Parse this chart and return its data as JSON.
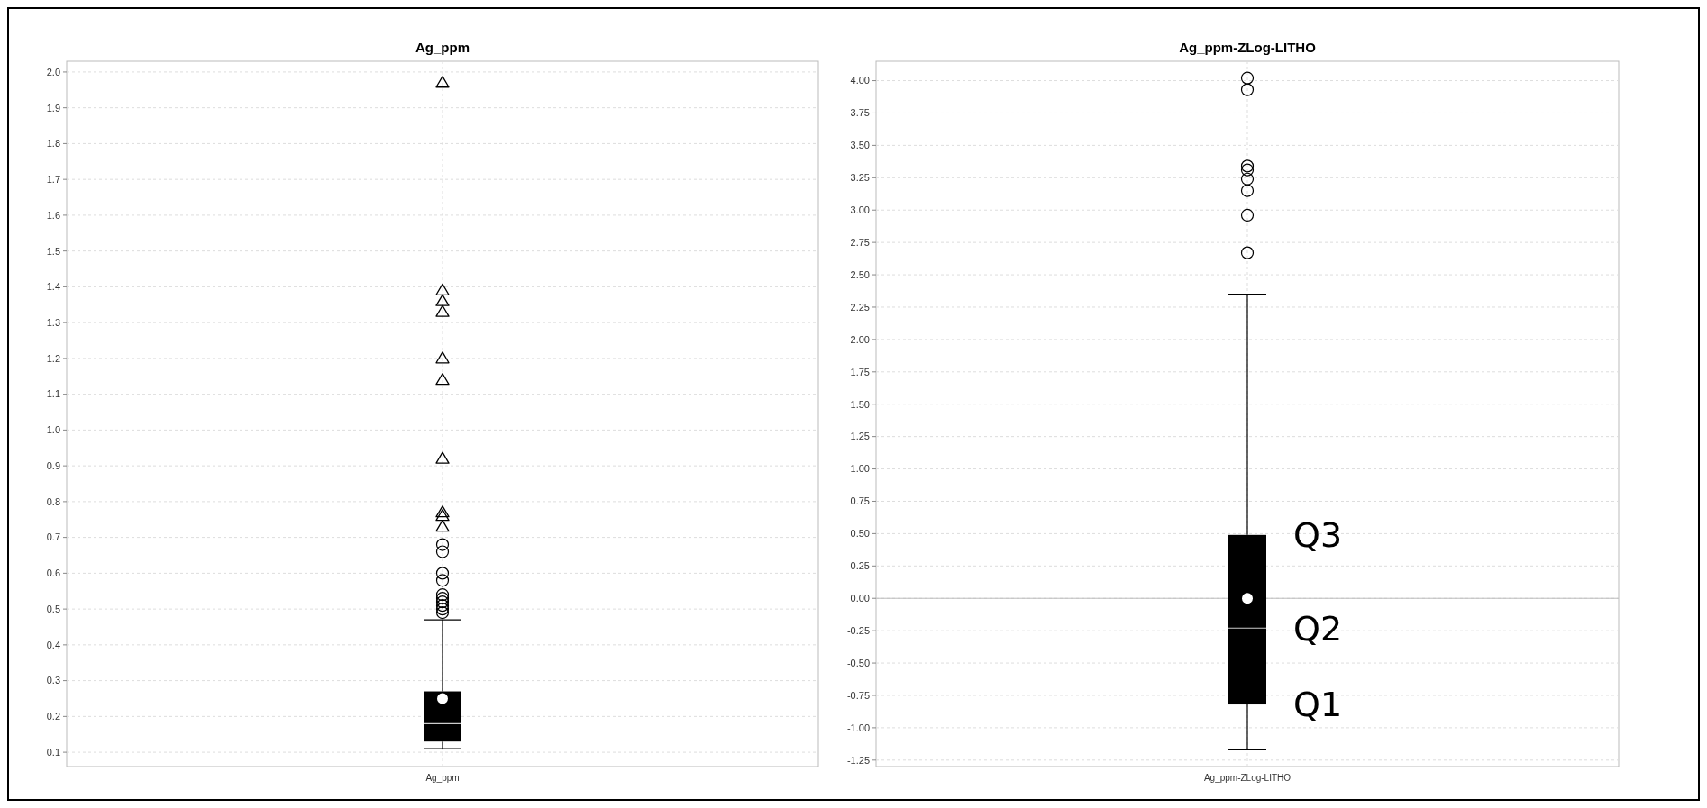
{
  "chart_data": [
    {
      "type": "box",
      "title": "Ag_ppm",
      "categories": [
        "Ag_ppm"
      ],
      "ylim": [
        0.06,
        2.03
      ],
      "yticks": [
        {
          "value": 0.1,
          "label": "0.1"
        },
        {
          "value": 0.2,
          "label": "0.2"
        },
        {
          "value": 0.3,
          "label": "0.3"
        },
        {
          "value": 0.4,
          "label": "0.4"
        },
        {
          "value": 0.5,
          "label": "0.5"
        },
        {
          "value": 0.6,
          "label": "0.6"
        },
        {
          "value": 0.7,
          "label": "0.7"
        },
        {
          "value": 0.8,
          "label": "0.8"
        },
        {
          "value": 0.9,
          "label": "0.9"
        },
        {
          "value": 1.0,
          "label": "1.0"
        },
        {
          "value": 1.1,
          "label": "1.1"
        },
        {
          "value": 1.2,
          "label": "1.2"
        },
        {
          "value": 1.3,
          "label": "1.3"
        },
        {
          "value": 1.4,
          "label": "1.4"
        },
        {
          "value": 1.5,
          "label": "1.5"
        },
        {
          "value": 1.6,
          "label": "1.6"
        },
        {
          "value": 1.7,
          "label": "1.7"
        },
        {
          "value": 1.8,
          "label": "1.8"
        },
        {
          "value": 1.9,
          "label": "1.9"
        },
        {
          "value": 2.0,
          "label": "2.0"
        }
      ],
      "grid": true,
      "series": [
        {
          "color": "#000000",
          "boxes": [
            {
              "low": 0.11,
              "q1": 0.13,
              "median": 0.18,
              "q3": 0.27,
              "high": 0.47,
              "mean": 0.25,
              "outliers": [
                0.49,
                0.5,
                0.51,
                0.52,
                0.53,
                0.54,
                0.58,
                0.6,
                0.66,
                0.68
              ]
            }
          ]
        },
        {
          "type": "scatter",
          "color": "#000000",
          "marker": "triangle",
          "x": [
            "Ag_ppm",
            "Ag_ppm",
            "Ag_ppm",
            "Ag_ppm",
            "Ag_ppm",
            "Ag_ppm",
            "Ag_ppm",
            "Ag_ppm",
            "Ag_ppm",
            "Ag_ppm"
          ],
          "values": [
            0.73,
            0.76,
            0.77,
            0.92,
            1.14,
            1.2,
            1.33,
            1.36,
            1.39,
            1.97
          ]
        }
      ]
    },
    {
      "type": "box",
      "title": "Ag_ppm-ZLog-LITHO",
      "categories": [
        "Ag_ppm-ZLog-LITHO"
      ],
      "ylim": [
        -1.3,
        4.15
      ],
      "yticks": [
        {
          "value": -1.25,
          "label": "-1.25"
        },
        {
          "value": -1.0,
          "label": "-1.00"
        },
        {
          "value": -0.75,
          "label": "-0.75"
        },
        {
          "value": -0.5,
          "label": "-0.50"
        },
        {
          "value": -0.25,
          "label": "-0.25"
        },
        {
          "value": 0,
          "label": "0.00"
        },
        {
          "value": 0.25,
          "label": "0.25"
        },
        {
          "value": 0.5,
          "label": "0.50"
        },
        {
          "value": 0.75,
          "label": "0.75"
        },
        {
          "value": 1.0,
          "label": "1.00"
        },
        {
          "value": 1.25,
          "label": "1.25"
        },
        {
          "value": 1.5,
          "label": "1.50"
        },
        {
          "value": 1.75,
          "label": "1.75"
        },
        {
          "value": 2.0,
          "label": "2.00"
        },
        {
          "value": 2.25,
          "label": "2.25"
        },
        {
          "value": 2.5,
          "label": "2.50"
        },
        {
          "value": 2.75,
          "label": "2.75"
        },
        {
          "value": 3.0,
          "label": "3.00"
        },
        {
          "value": 3.25,
          "label": "3.25"
        },
        {
          "value": 3.5,
          "label": "3.50"
        },
        {
          "value": 3.75,
          "label": "3.75"
        },
        {
          "value": 4.0,
          "label": "4.00"
        }
      ],
      "grid": true,
      "ref_lines": [
        {
          "axis": "y",
          "value": 0,
          "color": "#bbbbbb"
        }
      ],
      "annotations": [
        {
          "text": "Q3",
          "x": "Ag_ppm-ZLog-LITHO",
          "y": 0.49
        },
        {
          "text": "Q2",
          "x": "Ag_ppm-ZLog-LITHO",
          "y": -0.23
        },
        {
          "text": "Q1",
          "x": "Ag_ppm-ZLog-LITHO",
          "y": -0.82
        }
      ],
      "series": [
        {
          "color": "#000000",
          "boxes": [
            {
              "low": -1.17,
              "q1": -0.82,
              "median": -0.23,
              "q3": 0.49,
              "high": 2.35,
              "mean": 0.0,
              "outliers": [
                2.67,
                2.96,
                3.15,
                3.24,
                3.31,
                3.34,
                3.93,
                4.02
              ]
            }
          ]
        }
      ]
    }
  ]
}
